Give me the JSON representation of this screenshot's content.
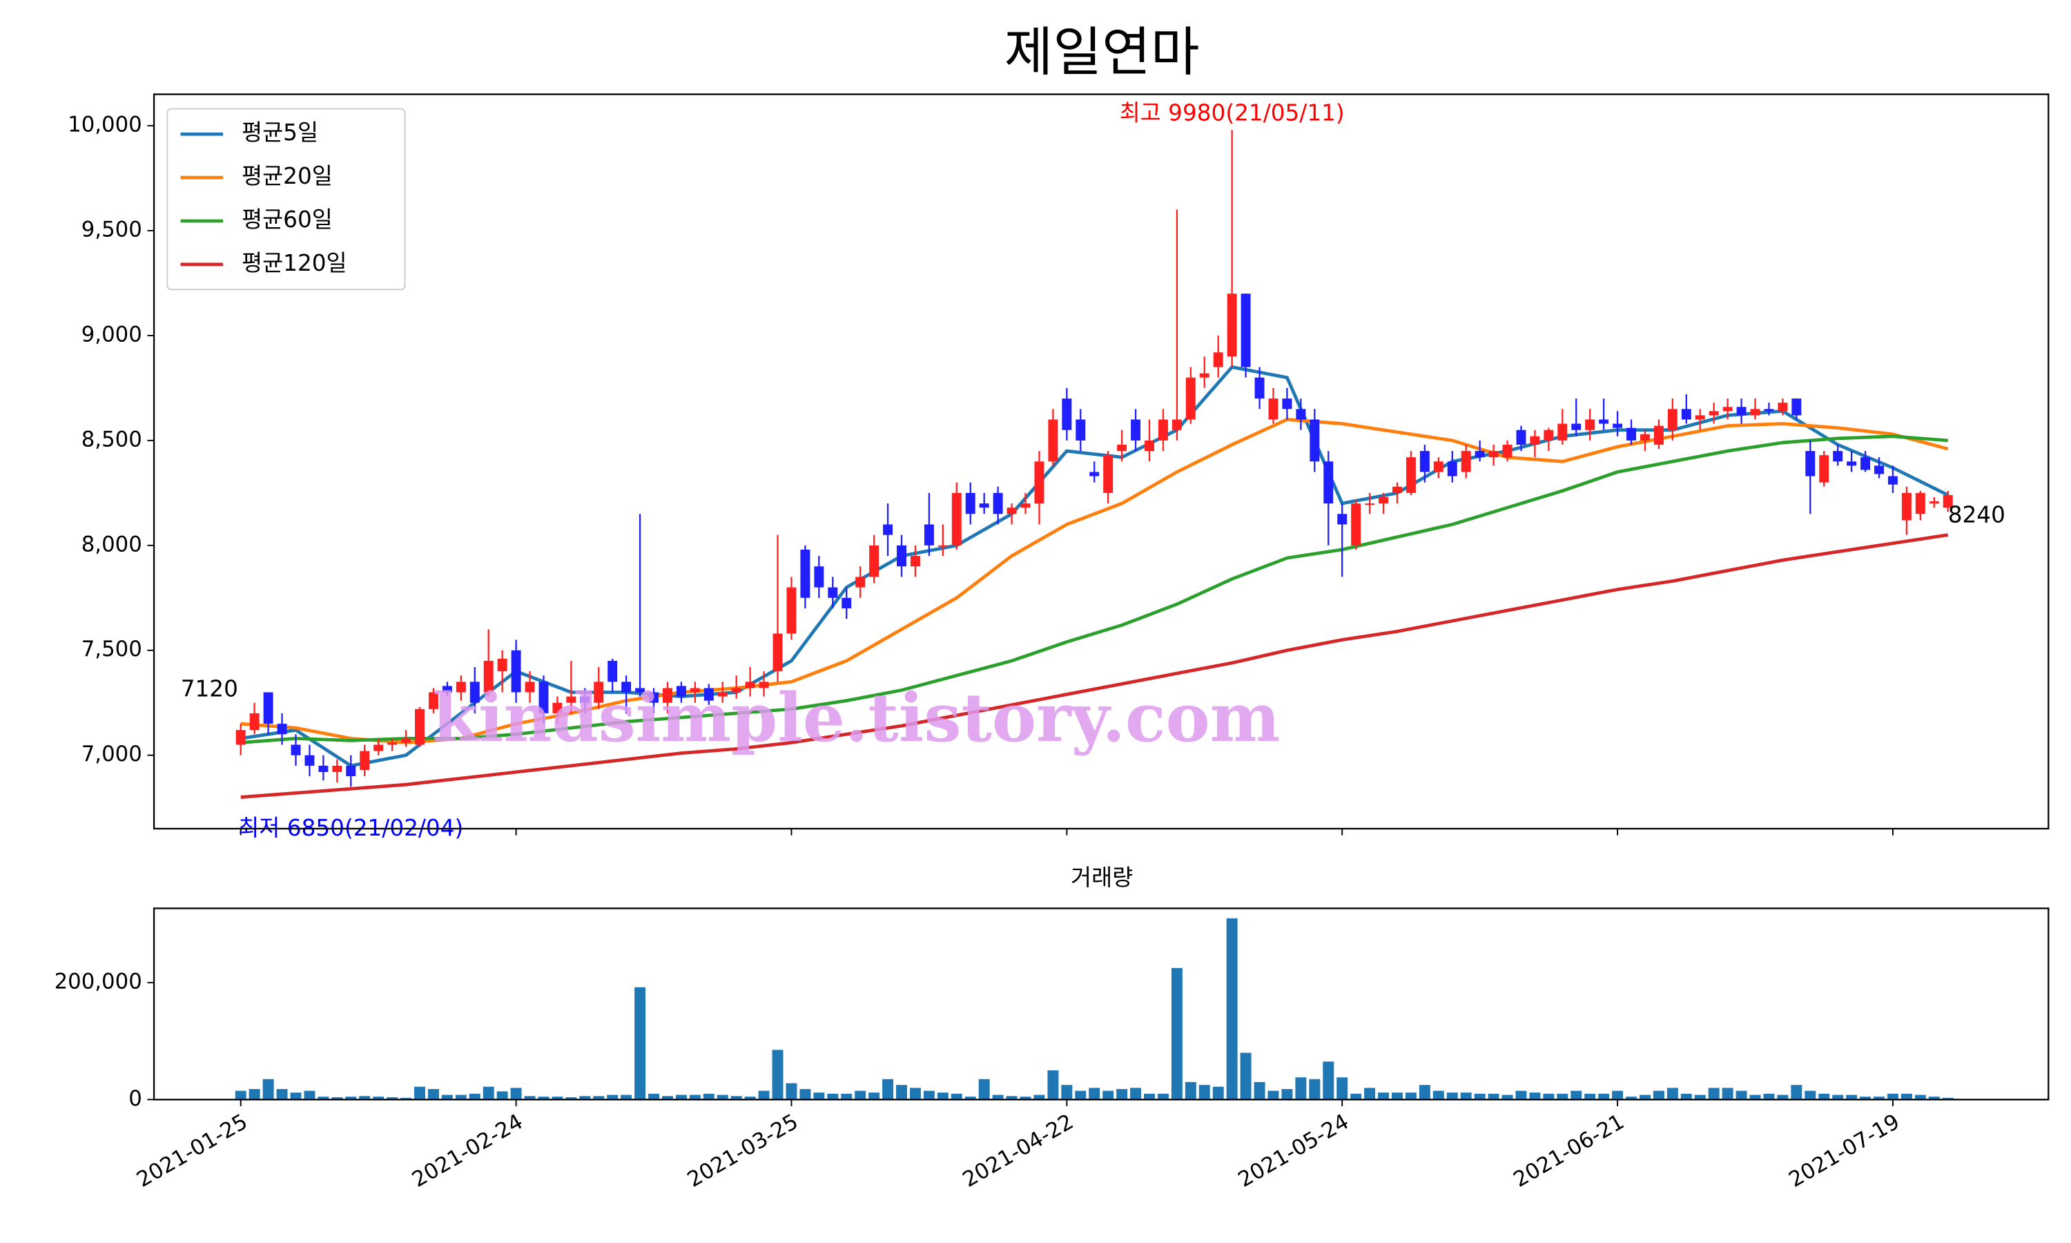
{
  "chart_data": {
    "type": "candlestick",
    "title": "제일연마",
    "up_color": "#ff2020",
    "down_color": "#2020ff",
    "annotations": [
      {
        "text": "최고 9980(21/05/11)",
        "color": "#ff0000"
      },
      {
        "text": "최저 6850(21/02/04)",
        "color": "#0000ff"
      }
    ],
    "watermark": "kindsimple.tistory.com",
    "xlim": [
      -6.3,
      131.3
    ],
    "xticks": [
      {
        "value": 0,
        "label": "2021-01-25"
      },
      {
        "value": 20,
        "label": "2021-02-24"
      },
      {
        "value": 40,
        "label": "2021-03-25"
      },
      {
        "value": 60,
        "label": "2021-04-22"
      },
      {
        "value": 80,
        "label": "2021-05-24"
      },
      {
        "value": 100,
        "label": "2021-06-21"
      },
      {
        "value": 120,
        "label": "2021-07-19"
      }
    ],
    "ylim": [
      6650,
      10150
    ],
    "yticks": [
      {
        "value": 7000,
        "label": "7,000"
      },
      {
        "value": 7500,
        "label": "7,500"
      },
      {
        "value": 8000,
        "label": "8,000"
      },
      {
        "value": 8500,
        "label": "8,500"
      },
      {
        "value": 9000,
        "label": "9,000"
      },
      {
        "value": 9500,
        "label": "9,500"
      },
      {
        "value": 10000,
        "label": "10,000"
      }
    ],
    "open": [
      7050,
      7120,
      7300,
      7150,
      7050,
      7000,
      6950,
      6920,
      6950,
      6930,
      7020,
      7050,
      7060,
      7050,
      7220,
      7330,
      7300,
      7350,
      7300,
      7400,
      7500,
      7300,
      7350,
      7200,
      7250,
      7280,
      7250,
      7450,
      7350,
      7320,
      7300,
      7250,
      7330,
      7300,
      7320,
      7280,
      7300,
      7320,
      7320,
      7400,
      7580,
      7980,
      7900,
      7800,
      7750,
      7800,
      7850,
      8100,
      8000,
      7900,
      8100,
      8000,
      8000,
      8250,
      8200,
      8250,
      8150,
      8180,
      8200,
      8400,
      8700,
      8600,
      8350,
      8250,
      8450,
      8600,
      8450,
      8500,
      8550,
      8600,
      8800,
      8850,
      8900,
      9200,
      8800,
      8600,
      8700,
      8650,
      8600,
      8400,
      8150,
      8000,
      8200,
      8200,
      8250,
      8250,
      8450,
      8350,
      8400,
      8350,
      8450,
      8420,
      8420,
      8550,
      8480,
      8500,
      8500,
      8580,
      8550,
      8600,
      8580,
      8560,
      8500,
      8480,
      8550,
      8650,
      8600,
      8620,
      8640,
      8660,
      8620,
      8650,
      8640,
      8700,
      8450,
      8300,
      8450,
      8400,
      8420,
      8380,
      8330,
      8120,
      8150,
      8200,
      8180
    ],
    "high": [
      7150,
      7250,
      7300,
      7200,
      7100,
      7050,
      7000,
      6980,
      7000,
      7050,
      7080,
      7080,
      7120,
      7230,
      7320,
      7350,
      7380,
      7420,
      7600,
      7500,
      7550,
      7400,
      7380,
      7280,
      7450,
      7320,
      7420,
      7460,
      7380,
      8150,
      7320,
      7350,
      7350,
      7350,
      7340,
      7350,
      7380,
      7420,
      7400,
      8050,
      7850,
      8000,
      7950,
      7850,
      7800,
      7900,
      8050,
      8200,
      8050,
      8000,
      8250,
      8100,
      8300,
      8300,
      8250,
      8280,
      8200,
      8250,
      8450,
      8650,
      8750,
      8650,
      8400,
      8450,
      8550,
      8650,
      8600,
      8650,
      9600,
      8850,
      8900,
      9000,
      9980,
      9200,
      8850,
      8750,
      8750,
      8700,
      8650,
      8450,
      8200,
      8220,
      8250,
      8250,
      8300,
      8450,
      8480,
      8420,
      8450,
      8480,
      8500,
      8480,
      8500,
      8570,
      8550,
      8560,
      8650,
      8700,
      8650,
      8700,
      8640,
      8600,
      8550,
      8600,
      8700,
      8720,
      8650,
      8680,
      8700,
      8700,
      8700,
      8680,
      8700,
      8700,
      8500,
      8450,
      8480,
      8450,
      8450,
      8420,
      8380,
      8280,
      8260,
      8230,
      8260
    ],
    "low": [
      7000,
      7100,
      7100,
      7050,
      6950,
      6900,
      6880,
      6870,
      6850,
      6900,
      7000,
      7020,
      7040,
      7040,
      7200,
      7280,
      7260,
      7200,
      7280,
      7300,
      7250,
      7250,
      7150,
      7150,
      7200,
      7200,
      7220,
      7300,
      7200,
      7280,
      7200,
      7200,
      7250,
      7250,
      7240,
      7250,
      7270,
      7280,
      7280,
      7350,
      7550,
      7700,
      7750,
      7700,
      7650,
      7750,
      7820,
      7950,
      7850,
      7850,
      7950,
      7950,
      7980,
      8100,
      8150,
      8100,
      8100,
      8150,
      8100,
      8380,
      8500,
      8450,
      8300,
      8200,
      8400,
      8450,
      8400,
      8450,
      8500,
      8580,
      8750,
      8800,
      8850,
      8800,
      8650,
      8580,
      8600,
      8550,
      8350,
      8000,
      7850,
      7980,
      8150,
      8150,
      8200,
      8240,
      8300,
      8320,
      8300,
      8320,
      8400,
      8380,
      8400,
      8450,
      8420,
      8450,
      8480,
      8520,
      8500,
      8550,
      8520,
      8480,
      8450,
      8460,
      8500,
      8580,
      8550,
      8580,
      8600,
      8580,
      8600,
      8620,
      8620,
      8600,
      8150,
      8280,
      8380,
      8350,
      8350,
      8320,
      8250,
      8050,
      8120,
      8180,
      8160
    ],
    "close": [
      7120,
      7200,
      7150,
      7100,
      7000,
      6950,
      6920,
      6950,
      6900,
      7020,
      7050,
      7060,
      7080,
      7220,
      7300,
      7300,
      7350,
      7250,
      7450,
      7460,
      7300,
      7350,
      7200,
      7250,
      7280,
      7250,
      7350,
      7350,
      7300,
      7300,
      7250,
      7320,
      7280,
      7320,
      7260,
      7300,
      7320,
      7350,
      7350,
      7580,
      7800,
      7750,
      7800,
      7750,
      7700,
      7850,
      8000,
      8050,
      7900,
      7950,
      8000,
      8000,
      8250,
      8150,
      8180,
      8150,
      8180,
      8200,
      8400,
      8600,
      8550,
      8500,
      8330,
      8430,
      8480,
      8500,
      8500,
      8600,
      8600,
      8800,
      8820,
      8920,
      9200,
      8850,
      8700,
      8700,
      8650,
      8600,
      8400,
      8200,
      8100,
      8200,
      8200,
      8230,
      8280,
      8420,
      8350,
      8400,
      8330,
      8450,
      8420,
      8450,
      8480,
      8480,
      8520,
      8550,
      8580,
      8550,
      8600,
      8580,
      8560,
      8500,
      8530,
      8570,
      8650,
      8600,
      8620,
      8640,
      8660,
      8620,
      8650,
      8640,
      8680,
      8620,
      8330,
      8430,
      8400,
      8380,
      8360,
      8340,
      8290,
      8250,
      8250,
      8210,
      8240
    ],
    "series_x": [
      0,
      4,
      8,
      12,
      16,
      20,
      24,
      28,
      32,
      36,
      40,
      44,
      48,
      52,
      56,
      60,
      64,
      68,
      72,
      76,
      80,
      84,
      88,
      92,
      96,
      100,
      104,
      108,
      112,
      116,
      120,
      124
    ],
    "legend": "upper left",
    "series": [
      {
        "name": "평균5일",
        "color": "#1f77b4",
        "values": [
          7080,
          7120,
          6950,
          7000,
          7200,
          7400,
          7300,
          7300,
          7280,
          7300,
          7450,
          7800,
          7950,
          8000,
          8150,
          8450,
          8420,
          8550,
          8850,
          8800,
          8200,
          8250,
          8400,
          8450,
          8520,
          8550,
          8550,
          8620,
          8640,
          8480,
          8370,
          8240
        ]
      },
      {
        "name": "평균20일",
        "color": "#ff7f0e",
        "values": [
          7150,
          7130,
          7080,
          7060,
          7080,
          7150,
          7200,
          7260,
          7300,
          7320,
          7350,
          7450,
          7600,
          7750,
          7950,
          8100,
          8200,
          8350,
          8480,
          8600,
          8580,
          8540,
          8500,
          8420,
          8400,
          8470,
          8520,
          8570,
          8580,
          8560,
          8530,
          8460
        ]
      },
      {
        "name": "평균60일",
        "color": "#2ca02c",
        "values": [
          7060,
          7080,
          7070,
          7080,
          7080,
          7100,
          7130,
          7160,
          7180,
          7200,
          7220,
          7260,
          7310,
          7380,
          7450,
          7540,
          7620,
          7720,
          7840,
          7940,
          7980,
          8040,
          8100,
          8180,
          8260,
          8350,
          8400,
          8450,
          8490,
          8510,
          8520,
          8500
        ]
      },
      {
        "name": "평균120일",
        "color": "#d62728",
        "values": [
          6800,
          6820,
          6840,
          6860,
          6890,
          6920,
          6950,
          6980,
          7010,
          7030,
          7060,
          7100,
          7140,
          7190,
          7240,
          7290,
          7340,
          7390,
          7440,
          7500,
          7550,
          7590,
          7640,
          7690,
          7740,
          7790,
          7830,
          7880,
          7930,
          7970,
          8010,
          8050
        ]
      }
    ],
    "volume": {
      "title": "거래량",
      "color": "#1f77b4",
      "ylim": [
        0,
        327000
      ],
      "yticks": [
        0,
        {
          "value": 200000,
          "label": "200,000"
        }
      ],
      "values": [
        15000,
        18000,
        35000,
        18000,
        12000,
        15000,
        5000,
        4000,
        5000,
        6000,
        5000,
        4000,
        3000,
        22000,
        18000,
        8000,
        8000,
        10000,
        22000,
        14000,
        20000,
        6000,
        5000,
        5000,
        4000,
        6000,
        6000,
        8000,
        8000,
        192000,
        10000,
        6000,
        8000,
        8000,
        10000,
        8000,
        6000,
        5000,
        15000,
        85000,
        28000,
        18000,
        12000,
        10000,
        10000,
        15000,
        12000,
        35000,
        25000,
        20000,
        15000,
        12000,
        10000,
        5000,
        35000,
        8000,
        6000,
        5000,
        8000,
        50000,
        25000,
        15000,
        20000,
        15000,
        18000,
        20000,
        10000,
        10000,
        225000,
        30000,
        25000,
        22000,
        310000,
        80000,
        30000,
        15000,
        18000,
        38000,
        35000,
        65000,
        38000,
        10000,
        20000,
        12000,
        12000,
        12000,
        25000,
        15000,
        12000,
        12000,
        10000,
        10000,
        8000,
        15000,
        12000,
        10000,
        10000,
        15000,
        10000,
        10000,
        15000,
        5000,
        8000,
        15000,
        20000,
        10000,
        8000,
        20000,
        20000,
        15000,
        8000,
        10000,
        8000,
        25000,
        15000,
        10000,
        8000,
        8000,
        5000,
        5000,
        10000,
        10000,
        8000,
        5000,
        3000
      ]
    }
  }
}
